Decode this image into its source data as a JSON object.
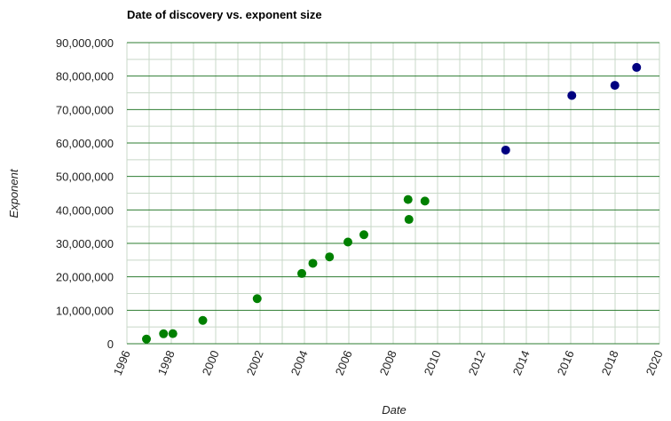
{
  "chart_data": {
    "type": "scatter",
    "title": "Date of discovery vs. exponent size",
    "xlabel": "Date",
    "ylabel": "Exponent",
    "xlim": [
      1996,
      2020
    ],
    "ylim": [
      0,
      90000000
    ],
    "x_ticks": [
      1996,
      1998,
      2000,
      2002,
      2004,
      2006,
      2008,
      2010,
      2012,
      2014,
      2016,
      2018,
      2020
    ],
    "x_tick_labels": [
      "1996",
      "1998",
      "2000",
      "2002",
      "2004",
      "2006",
      "2008",
      "2010",
      "2012",
      "2014",
      "2016",
      "2018",
      "2020"
    ],
    "y_ticks": [
      0,
      10000000,
      20000000,
      30000000,
      40000000,
      50000000,
      60000000,
      70000000,
      80000000,
      90000000
    ],
    "y_tick_labels": [
      "0",
      "10,000,000",
      "20,000,000",
      "30,000,000",
      "40,000,000",
      "50,000,000",
      "60,000,000",
      "70,000,000",
      "80,000,000",
      "90,000,000"
    ],
    "grid": true,
    "legend": "none",
    "series": [
      {
        "color": "#008000",
        "points": [
          {
            "x": 1996.88,
            "y": 1398269
          },
          {
            "x": 1997.65,
            "y": 2976221
          },
          {
            "x": 1998.07,
            "y": 3021377
          },
          {
            "x": 1999.42,
            "y": 6972593
          },
          {
            "x": 2001.87,
            "y": 13466917
          },
          {
            "x": 2003.88,
            "y": 20996011
          },
          {
            "x": 2004.38,
            "y": 24036583
          },
          {
            "x": 2005.13,
            "y": 25964951
          },
          {
            "x": 2005.96,
            "y": 30402457
          },
          {
            "x": 2006.68,
            "y": 32582657
          },
          {
            "x": 2008.67,
            "y": 43112609
          },
          {
            "x": 2008.71,
            "y": 37156667
          },
          {
            "x": 2009.43,
            "y": 42643801
          }
        ]
      },
      {
        "color": "#000080",
        "points": [
          {
            "x": 2013.07,
            "y": 57885161
          },
          {
            "x": 2016.05,
            "y": 74207281
          },
          {
            "x": 2017.99,
            "y": 77232917
          },
          {
            "x": 2018.97,
            "y": 82589933
          }
        ]
      }
    ],
    "colors": {
      "grid_major": "#2e7d32",
      "grid_minor": "#c8d8c8",
      "axis_text": "#222222"
    }
  }
}
